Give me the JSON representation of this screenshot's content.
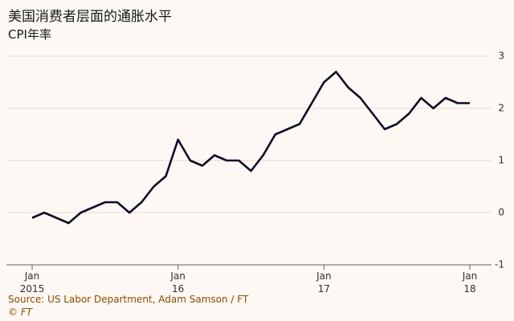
{
  "chart_data": {
    "type": "line",
    "title": "美国消费者层面的通胀水平",
    "subtitle": "CPI年率",
    "source": "Source: US Labor Department, Adam Samson / FT",
    "copyright": "© FT",
    "categories": [
      "Jan\n2015",
      null,
      null,
      null,
      null,
      null,
      null,
      null,
      null,
      null,
      null,
      null,
      "Jan\n16",
      null,
      null,
      null,
      null,
      null,
      null,
      null,
      null,
      null,
      null,
      null,
      "Jan\n17",
      null,
      null,
      null,
      null,
      null,
      null,
      null,
      null,
      null,
      null,
      null,
      "Jan\n18"
    ],
    "series": [
      {
        "color": "#0d0d26",
        "values": [
          -0.1,
          0.0,
          -0.1,
          -0.2,
          0.0,
          0.1,
          0.2,
          0.2,
          0.0,
          0.2,
          0.5,
          0.7,
          1.4,
          1.0,
          0.9,
          1.1,
          1.0,
          1.0,
          0.8,
          1.1,
          1.5,
          1.6,
          1.7,
          2.1,
          2.5,
          2.7,
          2.4,
          2.2,
          1.9,
          1.6,
          1.7,
          1.9,
          2.2,
          2.0,
          2.2,
          2.1,
          2.1
        ]
      }
    ],
    "ylim": [
      -1,
      3
    ],
    "yticks": [
      -1,
      0,
      1,
      2,
      3
    ],
    "grid": true
  }
}
